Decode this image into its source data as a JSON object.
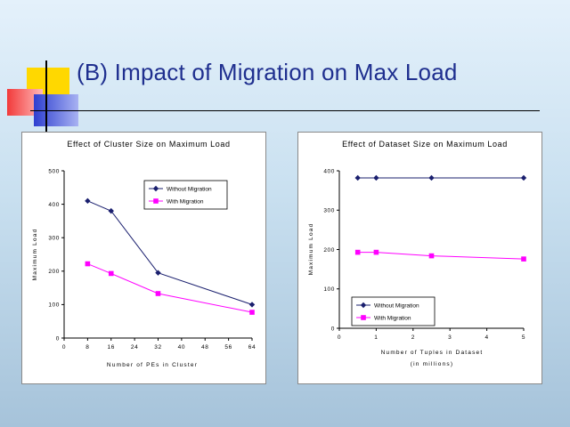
{
  "slide": {
    "title": "(B) Impact of Migration on Max Load",
    "colors": {
      "title": "#1f2f8f",
      "deco_yellow": "#ffd800",
      "deco_red": "#f23a3a",
      "deco_blue": "#2e3fd0",
      "rule": "#000000"
    }
  },
  "chart_data": [
    {
      "type": "line",
      "title": "Effect of Cluster Size on Maximum Load",
      "xlabel": "Number of PEs in Cluster",
      "ylabel": "Maximum Load",
      "x": [
        8,
        16,
        32,
        64
      ],
      "xlim": [
        0,
        64
      ],
      "xticks": [
        "0",
        "8",
        "16",
        "24",
        "32",
        "40",
        "48",
        "56",
        "64"
      ],
      "ylim": [
        0,
        500
      ],
      "yticks": [
        "0",
        "100",
        "200",
        "300",
        "400",
        "500"
      ],
      "grid": false,
      "legend": "top-right",
      "series": [
        {
          "name": "Without Migration",
          "values": [
            410,
            380,
            195,
            100
          ],
          "color": "#1a1f6e",
          "marker": "diamond"
        },
        {
          "name": "With Migration",
          "values": [
            222,
            193,
            133,
            77
          ],
          "color": "#ff00ff",
          "marker": "square"
        }
      ]
    },
    {
      "type": "line",
      "title": "Effect of Dataset Size on Maximum Load",
      "xlabel": "Number of Tuples in Dataset",
      "xlabel2": "(in millions)",
      "ylabel": "Maximum Load",
      "x": [
        0.5,
        1,
        2.5,
        5
      ],
      "xlim": [
        0,
        5
      ],
      "xticks": [
        "0",
        "1",
        "2",
        "3",
        "4",
        "5"
      ],
      "ylim": [
        0,
        400
      ],
      "yticks": [
        "0",
        "100",
        "200",
        "300",
        "400"
      ],
      "grid": false,
      "legend": "bottom-left",
      "series": [
        {
          "name": "Without Migration",
          "values": [
            382,
            382,
            382,
            382
          ],
          "color": "#1a1f6e",
          "marker": "diamond"
        },
        {
          "name": "With Migration",
          "values": [
            193,
            193,
            184,
            176
          ],
          "color": "#ff00ff",
          "marker": "square"
        }
      ]
    }
  ]
}
